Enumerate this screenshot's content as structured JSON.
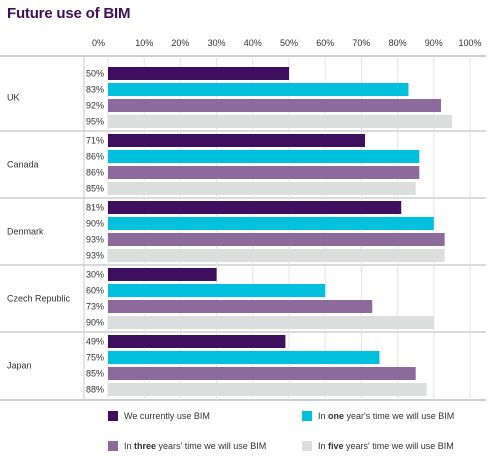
{
  "chart_data": {
    "type": "bar",
    "orientation": "horizontal",
    "title": "Future use of BIM",
    "categories": [
      "UK",
      "Canada",
      "Denmark",
      "Czech Republic",
      "Japan"
    ],
    "series": [
      {
        "name": "We currently use BIM",
        "values": [
          50,
          71,
          81,
          30,
          49
        ],
        "color": "#3d0f5e"
      },
      {
        "name": "In one year's time we will use BIM",
        "values": [
          83,
          86,
          90,
          60,
          75
        ],
        "color": "#00c0de"
      },
      {
        "name": "In three years' time we will use BIM",
        "values": [
          92,
          86,
          93,
          73,
          85
        ],
        "color": "#8c6b9c"
      },
      {
        "name": "In five years' time we will use BIM",
        "values": [
          95,
          85,
          93,
          90,
          88
        ],
        "color": "#dcdedd"
      }
    ],
    "value_labels": [
      [
        "50%",
        "83%",
        "92%",
        "95%"
      ],
      [
        "71%",
        "86%",
        "86%",
        "85%"
      ],
      [
        "81%",
        "90%",
        "93%",
        "93%"
      ],
      [
        "30%",
        "60%",
        "73%",
        "90%"
      ],
      [
        "49%",
        "75%",
        "85%",
        "88%"
      ]
    ],
    "x_ticks": [
      "0%",
      "10%",
      "20%",
      "30%",
      "40%",
      "50%",
      "60%",
      "70%",
      "80%",
      "90%",
      "100%"
    ],
    "xlim": [
      0,
      100
    ],
    "xlabel": "",
    "ylabel": "",
    "grid": true,
    "legend_position": "bottom",
    "legend": [
      {
        "pre": "We currently use BIM",
        "bold": "",
        "post": ""
      },
      {
        "pre": "In ",
        "bold": "one",
        "post": " year's time we will use BIM"
      },
      {
        "pre": "In ",
        "bold": "three",
        "post": " years' time we will use BIM"
      },
      {
        "pre": "In ",
        "bold": "five",
        "post": " years' time we will use BIM"
      }
    ]
  }
}
